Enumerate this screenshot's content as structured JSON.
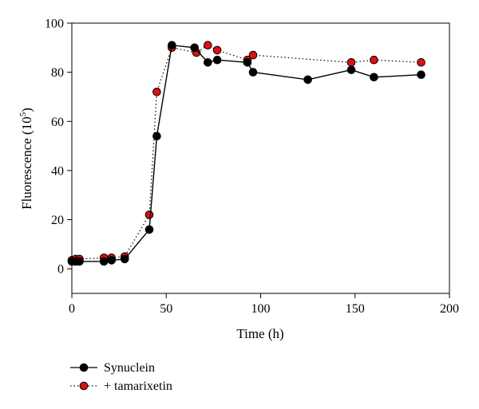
{
  "chart_data": {
    "type": "line",
    "xlabel": "Time (h)",
    "ylabel": "Fluorescence (10",
    "ylabel_exponent": "5",
    "ylabel_suffix": ")",
    "xlim": [
      0,
      200
    ],
    "ylim": [
      -10,
      100
    ],
    "x_ticks": [
      0,
      50,
      100,
      150,
      200
    ],
    "y_ticks": [
      0,
      20,
      40,
      60,
      80,
      100
    ],
    "grid": false,
    "legend_position": "bottom-left",
    "series": [
      {
        "name": "Synuclein",
        "line_style": "solid",
        "marker_color": "#000000",
        "line_color": "#000000",
        "x": [
          0,
          2,
          4,
          17,
          21,
          28,
          41,
          45,
          53,
          65,
          72,
          77,
          93,
          96,
          125,
          148,
          160,
          185
        ],
        "y": [
          3,
          3,
          3,
          3,
          3.5,
          4,
          16,
          54,
          91,
          90,
          84,
          85,
          84,
          80,
          77,
          81,
          78,
          79
        ]
      },
      {
        "name": "+ tamarixetin",
        "line_style": "dotted",
        "marker_color": "#e01010",
        "line_color": "#000000",
        "x": [
          0,
          2,
          4,
          17,
          21,
          28,
          41,
          45,
          53,
          66,
          72,
          77,
          93,
          96,
          148,
          160,
          185
        ],
        "y": [
          3.5,
          4,
          4,
          4.5,
          4.5,
          5,
          22,
          72,
          90,
          88,
          91,
          89,
          85,
          87,
          84,
          85,
          84
        ]
      }
    ]
  }
}
